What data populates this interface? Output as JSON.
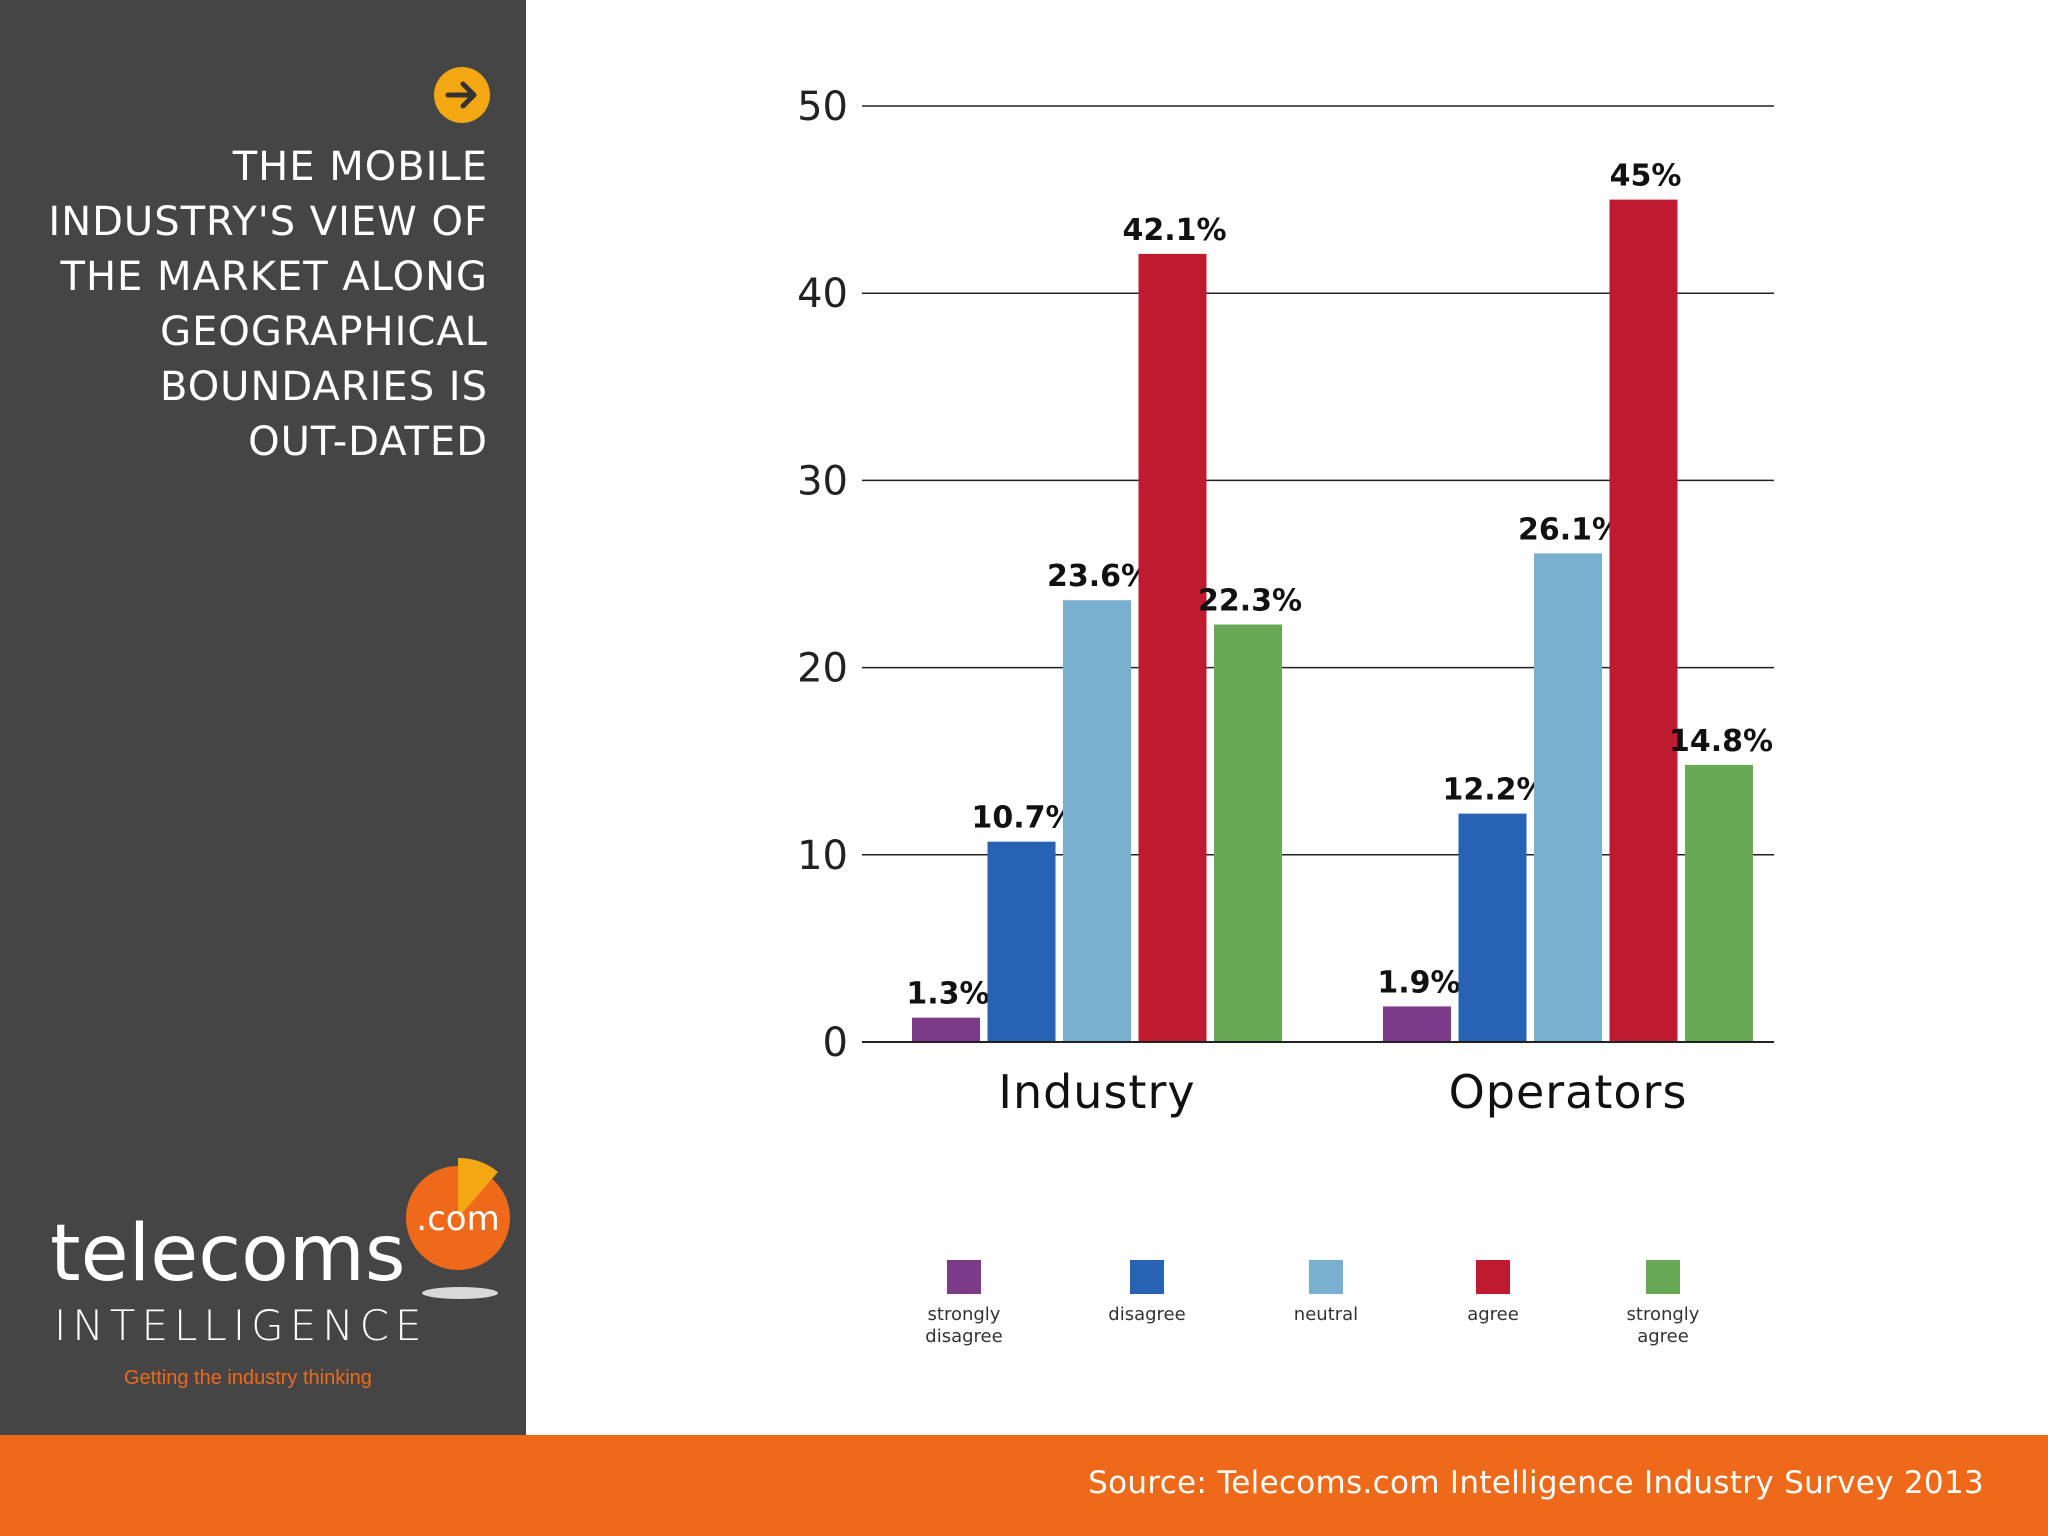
{
  "sidebar": {
    "title_lines": [
      "THE MOBILE",
      "INDUSTRY'S VIEW OF",
      "THE MARKET ALONG",
      "GEOGRAPHICAL",
      "BOUNDARIES IS",
      "OUT-DATED"
    ],
    "logo": {
      "wordmark": "telecoms",
      "badge": ".com",
      "subline": "INTELLIGENCE",
      "tagline": "Getting the industry thinking"
    }
  },
  "footer": {
    "source": "Source: Telecoms.com Intelligence Industry Survey 2013"
  },
  "colors": {
    "sidebar": "#464546",
    "accent_orange": "#ee6a1a",
    "arrow_yellow": "#f3a712",
    "strongly_disagree": "#7b3b86",
    "disagree": "#2762b4",
    "neutral": "#79b0cf",
    "agree": "#bf1b30",
    "strongly_agree": "#67a955"
  },
  "chart_data": {
    "type": "bar",
    "title": "THE MOBILE INDUSTRY'S VIEW OF THE MARKET ALONG GEOGRAPHICAL BOUNDARIES IS OUT-DATED",
    "categories": [
      "Industry",
      "Operators"
    ],
    "series": [
      {
        "name": "strongly disagree",
        "legend_label": "strongly\ndisagree",
        "color": "#7b3b86",
        "values": [
          1.3,
          1.9
        ],
        "labels": [
          "1.3%",
          "1.9%"
        ]
      },
      {
        "name": "disagree",
        "legend_label": "disagree",
        "color": "#2762b4",
        "values": [
          10.7,
          12.2
        ],
        "labels": [
          "10.7%",
          "12.2%"
        ]
      },
      {
        "name": "neutral",
        "legend_label": "neutral",
        "color": "#79b0cf",
        "values": [
          23.6,
          26.1
        ],
        "labels": [
          "23.6%",
          "26.1%"
        ]
      },
      {
        "name": "agree",
        "legend_label": "agree",
        "color": "#bf1b30",
        "values": [
          42.1,
          45
        ],
        "labels": [
          "42.1%",
          "45%"
        ]
      },
      {
        "name": "strongly agree",
        "legend_label": "strongly\nagree",
        "color": "#67a955",
        "values": [
          22.3,
          14.8
        ],
        "labels": [
          "22.3%",
          "14.8%"
        ]
      }
    ],
    "ylim": [
      0,
      50
    ],
    "yticks": [
      0,
      10,
      20,
      30,
      40,
      50
    ],
    "xlabel": "",
    "ylabel": "",
    "grid": true,
    "legend": "bottom"
  }
}
